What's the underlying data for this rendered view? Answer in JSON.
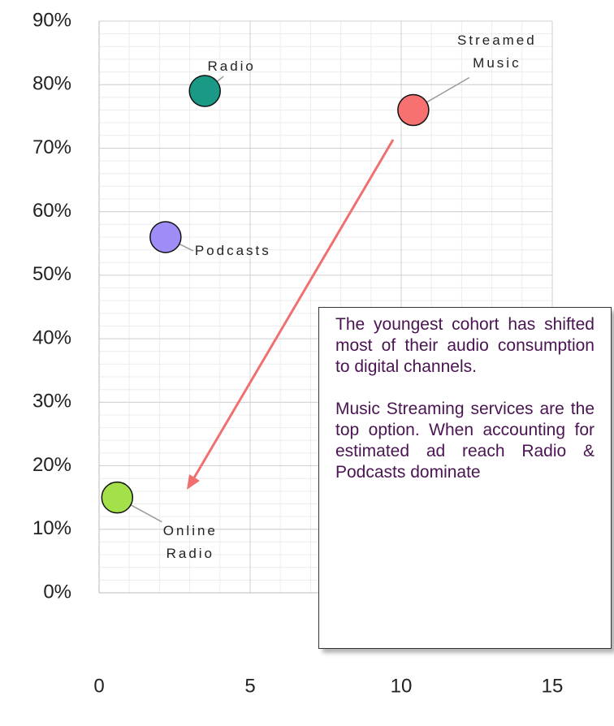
{
  "chart_data": {
    "type": "scatter",
    "series": [
      {
        "name": "Radio",
        "color": "#1a9a86",
        "x": [
          3.5
        ],
        "values": [
          79
        ]
      },
      {
        "name": "Streamed Music",
        "color": "#f87171",
        "x": [
          10.4
        ],
        "values": [
          76
        ]
      },
      {
        "name": "Podcasts",
        "color": "#9f8cf5",
        "x": [
          2.2
        ],
        "values": [
          56
        ]
      },
      {
        "name": "Online Radio",
        "color": "#a3e04a",
        "x": [
          0.6
        ],
        "values": [
          15
        ]
      }
    ],
    "xlim": [
      0,
      15
    ],
    "xticks": [
      0,
      5,
      10,
      15
    ],
    "ylim": [
      0,
      90
    ],
    "yticks": [
      {
        "value": 0,
        "label": "0%"
      },
      {
        "value": 10,
        "label": "10%"
      },
      {
        "value": 20,
        "label": "20%"
      },
      {
        "value": 30,
        "label": "30%"
      },
      {
        "value": 40,
        "label": "40%"
      },
      {
        "value": 50,
        "label": "50%"
      },
      {
        "value": 60,
        "label": "60%"
      },
      {
        "value": 70,
        "label": "70%"
      },
      {
        "value": 80,
        "label": "80%"
      },
      {
        "value": 90,
        "label": "90%"
      }
    ],
    "grid": true,
    "annotation": [
      "The youngest cohort has shifted most of their audio consumption to digital channels.",
      "Music Streaming services are the top option. When accounting for estimated ad reach Radio & Podcasts dominate"
    ]
  }
}
